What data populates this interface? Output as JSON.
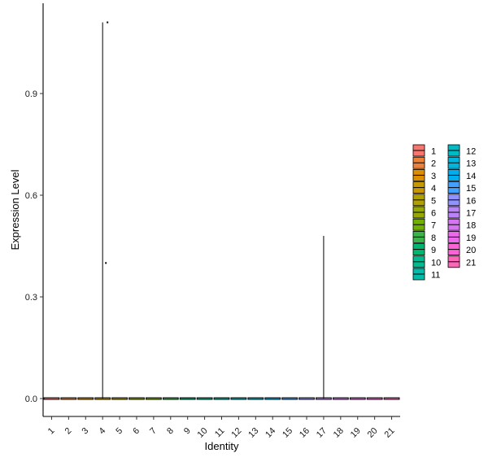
{
  "chart_data": {
    "type": "violin",
    "xlabel": "Identity",
    "ylabel": "Expression Level",
    "categories": [
      "1",
      "2",
      "3",
      "4",
      "5",
      "6",
      "7",
      "8",
      "9",
      "10",
      "11",
      "12",
      "13",
      "14",
      "15",
      "16",
      "17",
      "18",
      "19",
      "20",
      "21"
    ],
    "ylim": [
      -0.04,
      1.13
    ],
    "yticks": [
      0.0,
      0.3,
      0.6,
      0.9
    ],
    "ytick_labels": [
      "0.0",
      "0.3",
      "0.6",
      "0.9"
    ],
    "series": [
      {
        "category": "1",
        "min": 0,
        "max": 0.0,
        "outliers": []
      },
      {
        "category": "2",
        "min": 0,
        "max": 0.0,
        "outliers": []
      },
      {
        "category": "3",
        "min": 0,
        "max": 0.0,
        "outliers": []
      },
      {
        "category": "4",
        "min": 0,
        "max": 1.11,
        "outliers": [
          1.11,
          0.4
        ]
      },
      {
        "category": "5",
        "min": 0,
        "max": 0.0,
        "outliers": []
      },
      {
        "category": "6",
        "min": 0,
        "max": 0.0,
        "outliers": []
      },
      {
        "category": "7",
        "min": 0,
        "max": 0.0,
        "outliers": []
      },
      {
        "category": "8",
        "min": 0,
        "max": 0.0,
        "outliers": []
      },
      {
        "category": "9",
        "min": 0,
        "max": 0.0,
        "outliers": []
      },
      {
        "category": "10",
        "min": 0,
        "max": 0.0,
        "outliers": []
      },
      {
        "category": "11",
        "min": 0,
        "max": 0.0,
        "outliers": []
      },
      {
        "category": "12",
        "min": 0,
        "max": 0.0,
        "outliers": []
      },
      {
        "category": "13",
        "min": 0,
        "max": 0.0,
        "outliers": []
      },
      {
        "category": "14",
        "min": 0,
        "max": 0.0,
        "outliers": []
      },
      {
        "category": "15",
        "min": 0,
        "max": 0.0,
        "outliers": []
      },
      {
        "category": "16",
        "min": 0,
        "max": 0.0,
        "outliers": []
      },
      {
        "category": "17",
        "min": 0,
        "max": 0.48,
        "outliers": []
      },
      {
        "category": "18",
        "min": 0,
        "max": 0.0,
        "outliers": []
      },
      {
        "category": "19",
        "min": 0,
        "max": 0.0,
        "outliers": []
      },
      {
        "category": "20",
        "min": 0,
        "max": 0.0,
        "outliers": []
      },
      {
        "category": "21",
        "min": 0,
        "max": 0.0,
        "outliers": []
      }
    ],
    "colors": [
      "#F8766D",
      "#EC8239",
      "#DB8E00",
      "#C79800",
      "#B0A100",
      "#96A900",
      "#72B000",
      "#3BB44A",
      "#00B76F",
      "#00BB8F",
      "#00BCAA",
      "#00BBC4",
      "#00B6DC",
      "#00ADEF",
      "#42A0FF",
      "#8F92FF",
      "#BA83F8",
      "#D575EF",
      "#EC69EC",
      "#FA62D5",
      "#FE66B8"
    ],
    "legend": {
      "position": "right",
      "labels": [
        "1",
        "2",
        "3",
        "4",
        "5",
        "6",
        "7",
        "8",
        "9",
        "10",
        "11",
        "12",
        "13",
        "14",
        "15",
        "16",
        "17",
        "18",
        "19",
        "20",
        "21"
      ]
    },
    "grid": false
  }
}
